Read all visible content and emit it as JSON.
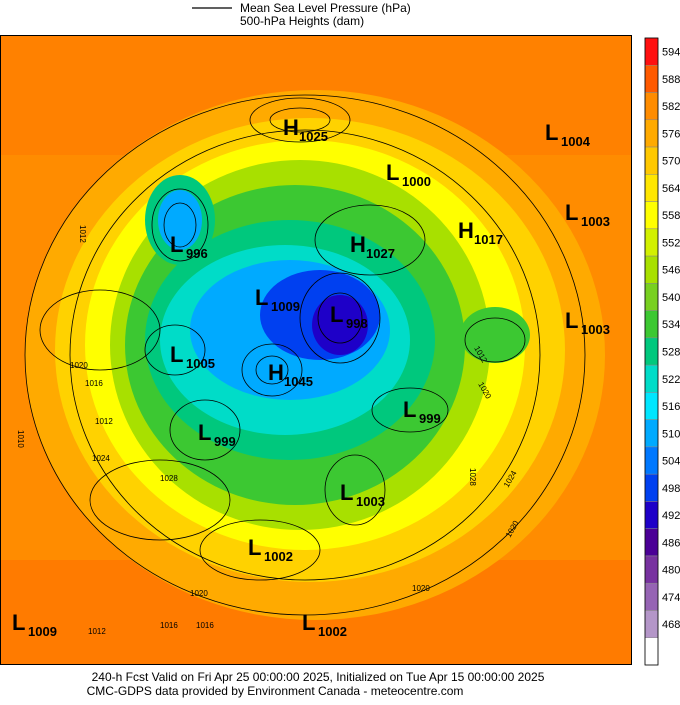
{
  "header": {
    "legend": [
      "Mean Sea Level Pressure (hPa)",
      "500-hPa Heights (dam)"
    ]
  },
  "centers": [
    {
      "letter": "H",
      "value": "1025"
    },
    {
      "letter": "L",
      "value": "1004"
    },
    {
      "letter": "L",
      "value": "1000"
    },
    {
      "letter": "L",
      "value": "1003"
    },
    {
      "letter": "H",
      "value": "1017"
    },
    {
      "letter": "L",
      "value": "996"
    },
    {
      "letter": "H",
      "value": "1027"
    },
    {
      "letter": "L",
      "value": "1009"
    },
    {
      "letter": "L",
      "value": "998"
    },
    {
      "letter": "L",
      "value": "1003"
    },
    {
      "letter": "L",
      "value": "1005"
    },
    {
      "letter": "H",
      "value": "1045"
    },
    {
      "letter": "L",
      "value": "999"
    },
    {
      "letter": "L",
      "value": "999"
    },
    {
      "letter": "L",
      "value": "1003"
    },
    {
      "letter": "L",
      "value": "1002"
    },
    {
      "letter": "L",
      "value": "1009"
    },
    {
      "letter": "L",
      "value": "1002"
    }
  ],
  "isobar_labels": [
    "1012",
    "1020",
    "1016",
    "1012",
    "1024",
    "1028",
    "1010",
    "1020",
    "1016",
    "1016",
    "1012",
    "1020",
    "1020",
    "1028",
    "1024",
    "1020",
    "1012"
  ],
  "colorbar": {
    "labels": [
      594,
      588,
      582,
      576,
      570,
      564,
      558,
      552,
      546,
      540,
      534,
      528,
      522,
      516,
      510,
      504,
      498,
      492,
      486,
      480,
      474,
      468
    ],
    "colors": [
      "#ff1010",
      "#ff5a00",
      "#ff8c00",
      "#ffaa00",
      "#ffc800",
      "#ffe600",
      "#ffff00",
      "#d2f000",
      "#a8e000",
      "#78d020",
      "#3cc832",
      "#00c87d",
      "#00dcc8",
      "#00e6ff",
      "#00aaff",
      "#0078ff",
      "#0040f0",
      "#1e00c8",
      "#4b0096",
      "#7832a0",
      "#9664b4",
      "#b496c8",
      "#ffffff"
    ]
  },
  "footer": [
    "240-h Fcst Valid on Fri Apr 25 00:00:00 2025, Initialized on Tue Apr 15 00:00:00 2025",
    "CMC-GDPS data provided by Environment Canada - meteocentre.com"
  ]
}
